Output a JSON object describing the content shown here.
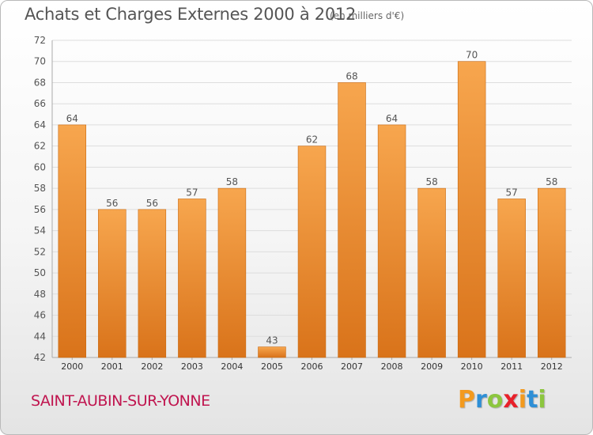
{
  "header": {
    "title": "Achats et Charges Externes 2000 à 2012",
    "unit": "(en milliers d'€)"
  },
  "footer": {
    "commune": "SAINT-AUBIN-SUR-YONNE",
    "brand_letters": [
      "P",
      "r",
      "o",
      "x",
      "i",
      "t",
      "i"
    ],
    "brand_colors": [
      "#f39a1e",
      "#2e8fd6",
      "#8cc63f",
      "#e8202a",
      "#f39a1e",
      "#2e8fd6",
      "#8cc63f"
    ]
  },
  "colors": {
    "bar_top": "#f7a64e",
    "bar_bottom": "#d9731a",
    "grid": "#dddddd",
    "axis_text": "#555555"
  },
  "chart_data": {
    "type": "bar",
    "categories": [
      "2000",
      "2001",
      "2002",
      "2003",
      "2004",
      "2005",
      "2006",
      "2007",
      "2008",
      "2009",
      "2010",
      "2011",
      "2012"
    ],
    "values": [
      64,
      56,
      56,
      57,
      58,
      43,
      62,
      68,
      64,
      58,
      70,
      57,
      58
    ],
    "ylim": [
      42,
      72
    ],
    "yticks": [
      42,
      44,
      46,
      48,
      50,
      52,
      54,
      56,
      58,
      60,
      62,
      64,
      66,
      68,
      70,
      72
    ],
    "grid": true
  }
}
